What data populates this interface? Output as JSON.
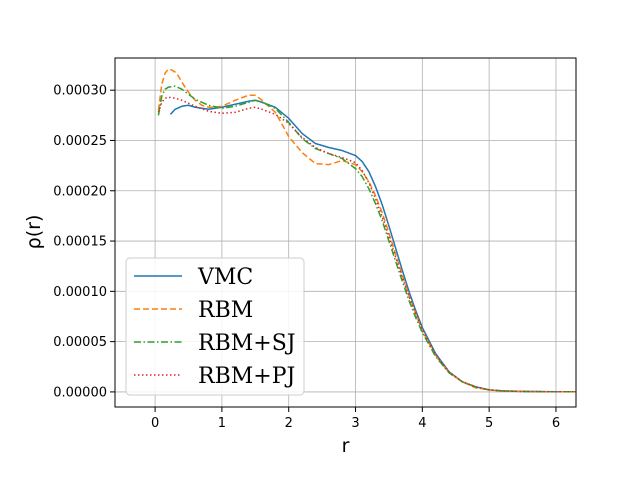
{
  "chart_data": {
    "type": "line",
    "xlabel": "r",
    "ylabel": "ρ(r)",
    "xlim": [
      -0.6,
      6.3
    ],
    "ylim": [
      -1.5e-05,
      0.000332
    ],
    "xticks": [
      0,
      1,
      2,
      3,
      4,
      5,
      6
    ],
    "xtick_labels": [
      "0",
      "1",
      "2",
      "3",
      "4",
      "5",
      "6"
    ],
    "yticks": [
      0,
      5e-05,
      0.0001,
      0.00015,
      0.0002,
      0.00025,
      0.0003
    ],
    "ytick_labels": [
      "0.00000",
      "0.00005",
      "0.00010",
      "0.00015",
      "0.00020",
      "0.00025",
      "0.00030"
    ],
    "grid": true,
    "legend_position": "lower-left",
    "series": [
      {
        "name": "VMC",
        "color": "#1f77b4",
        "style": "solid",
        "x": [
          0.23,
          0.3,
          0.4,
          0.5,
          0.6,
          0.8,
          1.0,
          1.2,
          1.4,
          1.5,
          1.6,
          1.8,
          2.0,
          2.2,
          2.4,
          2.6,
          2.8,
          3.0,
          3.1,
          3.2,
          3.3,
          3.4,
          3.5,
          3.6,
          3.7,
          3.8,
          3.9,
          4.0,
          4.2,
          4.4,
          4.6,
          4.8,
          5.0,
          5.2,
          5.5,
          6.0,
          6.3
        ],
        "y": [
          0.000276,
          0.000281,
          0.000284,
          0.000285,
          0.000283,
          0.000281,
          0.000283,
          0.000286,
          0.000289,
          0.00029,
          0.000288,
          0.000283,
          0.000272,
          0.000257,
          0.000247,
          0.000243,
          0.00024,
          0.000235,
          0.000229,
          0.000219,
          0.000204,
          0.000186,
          0.000165,
          0.000143,
          0.000121,
          0.0001,
          8.1e-05,
          6.4e-05,
          3.8e-05,
          2e-05,
          1e-05,
          5e-06,
          2e-06,
          1e-06,
          5e-07,
          2e-07,
          1e-07
        ]
      },
      {
        "name": "RBM",
        "color": "#ff7f0e",
        "style": "dashed",
        "x": [
          0.05,
          0.1,
          0.15,
          0.2,
          0.25,
          0.3,
          0.35,
          0.4,
          0.5,
          0.6,
          0.7,
          0.8,
          0.9,
          1.0,
          1.2,
          1.4,
          1.5,
          1.6,
          1.8,
          2.0,
          2.2,
          2.4,
          2.6,
          2.8,
          3.0,
          3.1,
          3.2,
          3.3,
          3.4,
          3.5,
          3.6,
          3.7,
          3.8,
          3.9,
          4.0,
          4.2,
          4.4,
          4.6,
          4.8,
          5.0,
          5.2,
          5.5,
          6.0,
          6.3
        ],
        "y": [
          0.00028,
          0.000306,
          0.000317,
          0.000321,
          0.00032,
          0.000318,
          0.000314,
          0.000308,
          0.000298,
          0.00029,
          0.000285,
          0.000283,
          0.000283,
          0.000284,
          0.00029,
          0.000295,
          0.000295,
          0.00029,
          0.000278,
          0.000254,
          0.000238,
          0.000227,
          0.000226,
          0.00023,
          0.000226,
          0.000219,
          0.000209,
          0.000195,
          0.000178,
          0.000158,
          0.000137,
          0.000116,
          9.6e-05,
          7.8e-05,
          6.1e-05,
          3.6e-05,
          1.9e-05,
          1e-05,
          4e-06,
          2e-06,
          1e-06,
          4e-07,
          1e-07,
          1e-07
        ]
      },
      {
        "name": "RBM+SJ",
        "color": "#2ca02c",
        "style": "dashdot",
        "x": [
          0.05,
          0.1,
          0.15,
          0.2,
          0.3,
          0.4,
          0.5,
          0.6,
          0.8,
          1.0,
          1.2,
          1.4,
          1.5,
          1.6,
          1.8,
          2.0,
          2.2,
          2.4,
          2.6,
          2.8,
          3.0,
          3.1,
          3.2,
          3.3,
          3.4,
          3.5,
          3.6,
          3.7,
          3.8,
          3.9,
          4.0,
          4.2,
          4.4,
          4.6,
          4.8,
          5.0,
          5.2,
          5.5,
          6.0,
          6.3
        ],
        "y": [
          0.000275,
          0.000294,
          0.000301,
          0.000303,
          0.000304,
          0.000301,
          0.000296,
          0.000291,
          0.000285,
          0.000282,
          0.000284,
          0.000288,
          0.00029,
          0.000288,
          0.000282,
          0.000268,
          0.000252,
          0.000242,
          0.000237,
          0.000232,
          0.000222,
          0.000214,
          0.000202,
          0.000187,
          0.00017,
          0.00015,
          0.00013,
          0.00011,
          9.1e-05,
          7.4e-05,
          5.9e-05,
          3.5e-05,
          1.9e-05,
          1e-05,
          5e-06,
          2e-06,
          1e-06,
          4e-07,
          1e-07,
          1e-07
        ]
      },
      {
        "name": "RBM+PJ",
        "color": "#d62728",
        "style": "dotted",
        "x": [
          0.05,
          0.1,
          0.15,
          0.2,
          0.3,
          0.4,
          0.5,
          0.6,
          0.8,
          1.0,
          1.2,
          1.4,
          1.5,
          1.6,
          1.8,
          2.0,
          2.2,
          2.4,
          2.6,
          2.8,
          3.0,
          3.1,
          3.2,
          3.3,
          3.4,
          3.5,
          3.6,
          3.7,
          3.8,
          3.9,
          4.0,
          4.2,
          4.4,
          4.6,
          4.8,
          5.0,
          5.2,
          5.5,
          6.0,
          6.3
        ],
        "y": [
          0.000278,
          0.000288,
          0.000292,
          0.000293,
          0.000292,
          0.00029,
          0.000287,
          0.000284,
          0.000279,
          0.000277,
          0.000278,
          0.000282,
          0.000283,
          0.000281,
          0.000276,
          0.000267,
          0.000253,
          0.000243,
          0.000237,
          0.000233,
          0.000228,
          0.00022,
          0.000208,
          0.000192,
          0.000174,
          0.000154,
          0.000134,
          0.000114,
          9.5e-05,
          7.8e-05,
          6.2e-05,
          3.7e-05,
          2e-05,
          1e-05,
          5e-06,
          2e-06,
          1e-06,
          4e-07,
          1e-07,
          1e-07
        ]
      }
    ]
  }
}
